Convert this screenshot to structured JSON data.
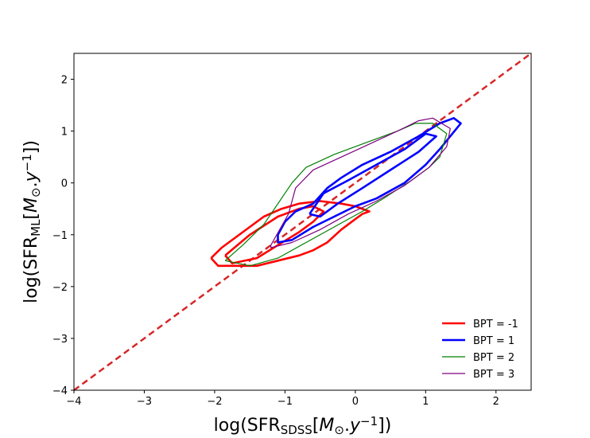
{
  "chart_data": {
    "type": "contour",
    "xlabel": [
      {
        "text": "log(SFR"
      },
      {
        "text": "SDSS",
        "sub": true
      },
      {
        "text": "["
      },
      {
        "text": "M",
        "italic": true
      },
      {
        "text": "⊙",
        "sub": true
      },
      {
        "text": "."
      },
      {
        "text": "y",
        "italic": true
      },
      {
        "text": "−1",
        "sup": true
      },
      {
        "text": "])"
      }
    ],
    "ylabel": [
      {
        "text": "log(SFR"
      },
      {
        "text": "ML",
        "sub": true
      },
      {
        "text": "["
      },
      {
        "text": "M",
        "italic": true
      },
      {
        "text": "⊙",
        "sub": true
      },
      {
        "text": "."
      },
      {
        "text": "y",
        "italic": true
      },
      {
        "text": "−1",
        "sup": true
      },
      {
        "text": "])"
      }
    ],
    "xlim": [
      -4,
      2.5
    ],
    "ylim": [
      -4,
      2.5
    ],
    "xticks": [
      {
        "value": -4,
        "label": "−4"
      },
      {
        "value": -3,
        "label": "−3"
      },
      {
        "value": -2,
        "label": "−2"
      },
      {
        "value": -1,
        "label": "−1"
      },
      0,
      1,
      2
    ],
    "yticks": [
      {
        "value": -4,
        "label": "−4"
      },
      {
        "value": -3,
        "label": "−3"
      },
      {
        "value": -2,
        "label": "−2"
      },
      {
        "value": -1,
        "label": "−1"
      },
      0,
      1,
      2
    ],
    "legend": "lower right",
    "reference_line": {
      "x": [
        -4,
        2.5
      ],
      "y": [
        -4,
        2.5
      ],
      "color": "#d62728",
      "dashed": true
    },
    "series": [
      {
        "name": "BPT = -1",
        "color": "#ff0000",
        "linewidth": 2.6,
        "contours": [
          {
            "x": [
              -2.05,
              -1.9,
              -1.6,
              -1.3,
              -1.05,
              -0.8,
              -0.5,
              -0.2,
              0.0,
              0.2,
              0.1,
              0.0,
              -0.2,
              -0.4,
              -0.6,
              -0.8,
              -1.1,
              -1.4,
              -1.7,
              -1.95,
              -2.05
            ],
            "y": [
              -1.45,
              -1.25,
              -0.95,
              -0.65,
              -0.5,
              -0.4,
              -0.35,
              -0.4,
              -0.45,
              -0.55,
              -0.6,
              -0.7,
              -0.9,
              -1.15,
              -1.3,
              -1.4,
              -1.5,
              -1.6,
              -1.6,
              -1.6,
              -1.45
            ]
          },
          {
            "x": [
              -1.85,
              -1.5,
              -1.1,
              -0.8,
              -0.6,
              -0.45,
              -0.6,
              -0.8,
              -1.1,
              -1.4,
              -1.75,
              -1.85
            ],
            "y": [
              -1.4,
              -1.0,
              -0.65,
              -0.5,
              -0.45,
              -0.55,
              -0.75,
              -0.95,
              -1.2,
              -1.45,
              -1.55,
              -1.4
            ]
          }
        ]
      },
      {
        "name": "BPT = 1",
        "color": "#0000ff",
        "linewidth": 2.6,
        "contours": [
          {
            "x": [
              -1.1,
              -1.0,
              -0.85,
              -0.6,
              -0.4,
              -0.2,
              0.1,
              0.5,
              0.9,
              1.2,
              1.4,
              1.5,
              1.35,
              1.2,
              1.0,
              0.7,
              0.3,
              0.0,
              -0.3,
              -0.6,
              -0.9,
              -1.1,
              -1.1
            ],
            "y": [
              -1.0,
              -0.75,
              -0.55,
              -0.4,
              -0.1,
              0.1,
              0.35,
              0.6,
              0.9,
              1.15,
              1.25,
              1.15,
              0.9,
              0.65,
              0.35,
              0.0,
              -0.3,
              -0.45,
              -0.65,
              -0.85,
              -1.1,
              -1.15,
              -1.0
            ]
          },
          {
            "x": [
              -0.65,
              -0.45,
              -0.1,
              0.3,
              0.7,
              1.0,
              1.15,
              0.9,
              0.5,
              0.1,
              -0.25,
              -0.5,
              -0.65
            ],
            "y": [
              -0.6,
              -0.2,
              0.05,
              0.35,
              0.65,
              0.95,
              0.9,
              0.6,
              0.25,
              -0.1,
              -0.4,
              -0.65,
              -0.6
            ]
          }
        ]
      },
      {
        "name": "BPT = 2",
        "color": "#008000",
        "linewidth": 1.2,
        "contours": [
          {
            "x": [
              -1.85,
              -1.6,
              -1.3,
              -1.05,
              -0.9,
              -0.7,
              -0.3,
              0.2,
              0.6,
              0.85,
              1.1,
              1.3,
              1.2,
              1.05,
              0.8,
              0.4,
              0.1,
              -0.3,
              -0.7,
              -1.1,
              -1.5,
              -1.85
            ],
            "y": [
              -1.5,
              -1.2,
              -0.8,
              -0.3,
              0.0,
              0.3,
              0.55,
              0.8,
              1.0,
              1.15,
              1.15,
              0.95,
              0.5,
              0.3,
              0.05,
              -0.3,
              -0.55,
              -0.85,
              -1.15,
              -1.45,
              -1.6,
              -1.5
            ]
          }
        ]
      },
      {
        "name": "BPT = 3",
        "color": "#800080",
        "linewidth": 1.2,
        "contours": [
          {
            "x": [
              -1.2,
              -0.95,
              -0.85,
              -0.6,
              -0.2,
              0.2,
              0.6,
              0.9,
              1.1,
              1.35,
              1.3,
              1.05,
              0.7,
              0.3,
              -0.1,
              -0.5,
              -0.9,
              -1.2,
              -1.2
            ],
            "y": [
              -1.2,
              -0.6,
              -0.1,
              0.25,
              0.5,
              0.75,
              1.0,
              1.2,
              1.25,
              1.05,
              0.7,
              0.3,
              -0.05,
              -0.35,
              -0.6,
              -0.9,
              -1.15,
              -1.25,
              -1.2
            ]
          }
        ]
      }
    ]
  }
}
